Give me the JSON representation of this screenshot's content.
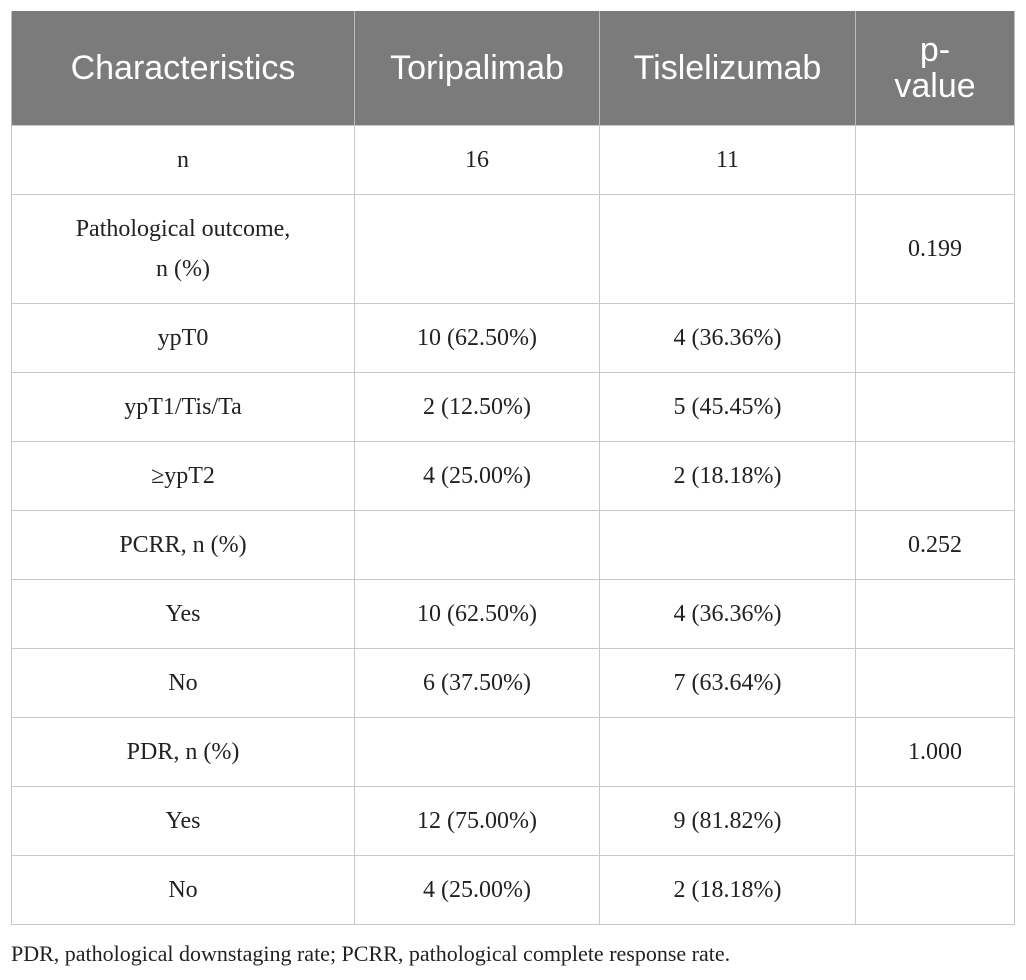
{
  "table": {
    "headers": [
      "Characteristics",
      "Toripalimab",
      "Tislelizumab",
      "p-\nvalue"
    ],
    "rows": [
      {
        "label": "n",
        "toripalimab": "16",
        "tislelizumab": "11",
        "p_value": ""
      },
      {
        "label": "Pathological outcome,\nn (%)",
        "toripalimab": "",
        "tislelizumab": "",
        "p_value": "0.199"
      },
      {
        "label": "ypT0",
        "toripalimab": "10 (62.50%)",
        "tislelizumab": "4 (36.36%)",
        "p_value": ""
      },
      {
        "label": "ypT1/Tis/Ta",
        "toripalimab": "2 (12.50%)",
        "tislelizumab": "5 (45.45%)",
        "p_value": ""
      },
      {
        "label": "≥ypT2",
        "toripalimab": "4 (25.00%)",
        "tislelizumab": "2 (18.18%)",
        "p_value": ""
      },
      {
        "label": "PCRR, n (%)",
        "toripalimab": "",
        "tislelizumab": "",
        "p_value": "0.252"
      },
      {
        "label": "Yes",
        "toripalimab": "10 (62.50%)",
        "tislelizumab": "4 (36.36%)",
        "p_value": ""
      },
      {
        "label": "No",
        "toripalimab": "6 (37.50%)",
        "tislelizumab": "7 (63.64%)",
        "p_value": ""
      },
      {
        "label": "PDR, n (%)",
        "toripalimab": "",
        "tislelizumab": "",
        "p_value": "1.000"
      },
      {
        "label": "Yes",
        "toripalimab": "12 (75.00%)",
        "tislelizumab": "9 (81.82%)",
        "p_value": ""
      },
      {
        "label": "No",
        "toripalimab": "4 (25.00%)",
        "tislelizumab": "2 (18.18%)",
        "p_value": ""
      }
    ]
  },
  "footnote": "PDR, pathological downstaging rate; PCRR, pathological complete response rate.",
  "colors": {
    "header_background": "#7b7b7b",
    "header_text": "#ffffff",
    "grid_line": "#c8c8c8",
    "body_text": "#222222"
  }
}
